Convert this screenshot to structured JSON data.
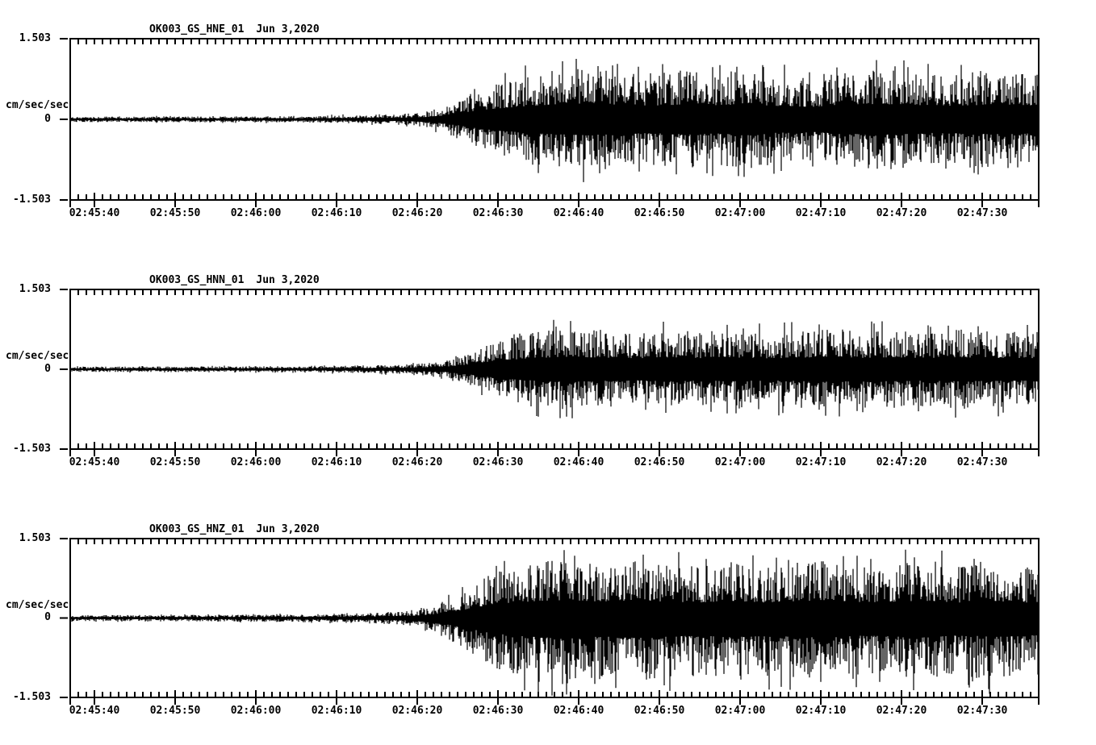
{
  "page": {
    "background_color": "#ffffff",
    "ink_color": "#000000",
    "description": "Three-component strong-motion seismogram record section, station OK003 (GS network), Jun 3, 2020"
  },
  "chart_data": [
    {
      "type": "line",
      "kind": "seismogram-trace",
      "station": "OK003_GS_HNE_01",
      "date": "Jun 3,2020",
      "ylabel": "cm/sec/sec",
      "ylim": [
        -1.503,
        1.503
      ],
      "y_ticks": [
        {
          "value": 1.503,
          "label": "1.503"
        },
        {
          "value": 0,
          "label": "0"
        },
        {
          "value": -1.503,
          "label": "-1.503"
        }
      ],
      "duration_s": 120,
      "x_minor_tick_s": 1,
      "x_major_tick_s": 10,
      "grid": false,
      "legend": false,
      "x_ticks": [
        {
          "t": 3,
          "label": "02:45:40"
        },
        {
          "t": 13,
          "label": "02:45:50"
        },
        {
          "t": 23,
          "label": "02:46:00"
        },
        {
          "t": 33,
          "label": "02:46:10"
        },
        {
          "t": 43,
          "label": "02:46:20"
        },
        {
          "t": 53,
          "label": "02:46:30"
        },
        {
          "t": 63,
          "label": "02:46:40"
        },
        {
          "t": 73,
          "label": "02:46:50"
        },
        {
          "t": 83,
          "label": "02:47:00"
        },
        {
          "t": 93,
          "label": "02:47:10"
        },
        {
          "t": 103,
          "label": "02:47:20"
        },
        {
          "t": 113,
          "label": "02:47:30"
        }
      ],
      "envelope": [
        [
          0,
          0.05
        ],
        [
          15,
          0.055
        ],
        [
          28,
          0.06
        ],
        [
          36,
          0.08
        ],
        [
          41,
          0.1
        ],
        [
          44,
          0.14
        ],
        [
          46,
          0.22
        ],
        [
          48,
          0.36
        ],
        [
          50,
          0.52
        ],
        [
          53,
          0.68
        ],
        [
          56,
          0.8
        ],
        [
          60,
          0.92
        ],
        [
          64,
          0.98
        ],
        [
          68,
          0.9
        ],
        [
          72,
          0.85
        ],
        [
          76,
          0.92
        ],
        [
          80,
          0.88
        ],
        [
          84,
          0.92
        ],
        [
          88,
          0.82
        ],
        [
          92,
          0.78
        ],
        [
          96,
          0.88
        ],
        [
          100,
          0.95
        ],
        [
          104,
          0.9
        ],
        [
          108,
          0.82
        ],
        [
          112,
          0.88
        ],
        [
          116,
          0.92
        ],
        [
          120,
          0.85
        ]
      ],
      "spikes": [
        {
          "t": 82.6,
          "up": 0.98,
          "down": -0.7
        }
      ],
      "asym_up": 1.0,
      "asym_down": 1.0
    },
    {
      "type": "line",
      "kind": "seismogram-trace",
      "station": "OK003_GS_HNN_01",
      "date": "Jun 3,2020",
      "ylabel": "cm/sec/sec",
      "ylim": [
        -1.503,
        1.503
      ],
      "y_ticks": [
        {
          "value": 1.503,
          "label": "1.503"
        },
        {
          "value": 0,
          "label": "0"
        },
        {
          "value": -1.503,
          "label": "-1.503"
        }
      ],
      "duration_s": 120,
      "x_minor_tick_s": 1,
      "x_major_tick_s": 10,
      "grid": false,
      "legend": false,
      "x_ticks": [
        {
          "t": 3,
          "label": "02:45:40"
        },
        {
          "t": 13,
          "label": "02:45:50"
        },
        {
          "t": 23,
          "label": "02:46:00"
        },
        {
          "t": 33,
          "label": "02:46:10"
        },
        {
          "t": 43,
          "label": "02:46:20"
        },
        {
          "t": 53,
          "label": "02:46:30"
        },
        {
          "t": 63,
          "label": "02:46:40"
        },
        {
          "t": 73,
          "label": "02:46:50"
        },
        {
          "t": 83,
          "label": "02:47:00"
        },
        {
          "t": 93,
          "label": "02:47:10"
        },
        {
          "t": 103,
          "label": "02:47:20"
        },
        {
          "t": 113,
          "label": "02:47:30"
        }
      ],
      "envelope": [
        [
          0,
          0.05
        ],
        [
          15,
          0.055
        ],
        [
          28,
          0.06
        ],
        [
          36,
          0.075
        ],
        [
          41,
          0.09
        ],
        [
          44,
          0.12
        ],
        [
          47,
          0.18
        ],
        [
          49,
          0.28
        ],
        [
          51,
          0.42
        ],
        [
          54,
          0.58
        ],
        [
          58,
          0.72
        ],
        [
          62,
          0.78
        ],
        [
          66,
          0.72
        ],
        [
          70,
          0.68
        ],
        [
          74,
          0.75
        ],
        [
          78,
          0.7
        ],
        [
          82,
          0.75
        ],
        [
          86,
          0.68
        ],
        [
          90,
          0.72
        ],
        [
          94,
          0.78
        ],
        [
          98,
          0.72
        ],
        [
          102,
          0.75
        ],
        [
          106,
          0.7
        ],
        [
          110,
          0.75
        ],
        [
          114,
          0.72
        ],
        [
          120,
          0.7
        ]
      ],
      "spikes": [
        {
          "t": 57.8,
          "up": 0.5,
          "down": -0.88
        },
        {
          "t": 88.5,
          "up": 0.88,
          "down": -0.5
        }
      ],
      "asym_up": 1.0,
      "asym_down": 1.0
    },
    {
      "type": "line",
      "kind": "seismogram-trace",
      "station": "OK003_GS_HNZ_01",
      "date": "Jun 3,2020",
      "ylabel": "cm/sec/sec",
      "ylim": [
        -1.503,
        1.503
      ],
      "y_ticks": [
        {
          "value": 1.503,
          "label": "1.503"
        },
        {
          "value": 0,
          "label": "0"
        },
        {
          "value": -1.503,
          "label": "-1.503"
        }
      ],
      "duration_s": 120,
      "x_minor_tick_s": 1,
      "x_major_tick_s": 10,
      "grid": false,
      "legend": false,
      "x_ticks": [
        {
          "t": 3,
          "label": "02:45:40"
        },
        {
          "t": 13,
          "label": "02:45:50"
        },
        {
          "t": 23,
          "label": "02:46:00"
        },
        {
          "t": 33,
          "label": "02:46:10"
        },
        {
          "t": 43,
          "label": "02:46:20"
        },
        {
          "t": 53,
          "label": "02:46:30"
        },
        {
          "t": 63,
          "label": "02:46:40"
        },
        {
          "t": 73,
          "label": "02:46:50"
        },
        {
          "t": 83,
          "label": "02:47:00"
        },
        {
          "t": 93,
          "label": "02:47:10"
        },
        {
          "t": 103,
          "label": "02:47:20"
        },
        {
          "t": 113,
          "label": "02:47:30"
        }
      ],
      "envelope": [
        [
          0,
          0.055
        ],
        [
          15,
          0.06
        ],
        [
          28,
          0.07
        ],
        [
          36,
          0.09
        ],
        [
          40,
          0.11
        ],
        [
          43,
          0.16
        ],
        [
          45,
          0.24
        ],
        [
          47,
          0.38
        ],
        [
          49,
          0.55
        ],
        [
          51,
          0.75
        ],
        [
          54,
          0.95
        ],
        [
          58,
          1.1
        ],
        [
          62,
          1.15
        ],
        [
          66,
          1.05
        ],
        [
          70,
          1.12
        ],
        [
          74,
          1.05
        ],
        [
          78,
          1.0
        ],
        [
          82,
          1.1
        ],
        [
          86,
          1.0
        ],
        [
          90,
          1.08
        ],
        [
          94,
          1.12
        ],
        [
          98,
          1.0
        ],
        [
          102,
          1.05
        ],
        [
          106,
          1.1
        ],
        [
          110,
          1.0
        ],
        [
          114,
          1.05
        ],
        [
          120,
          0.98
        ]
      ],
      "spikes": [
        {
          "t": 58,
          "up": 0.9,
          "down": -1.45
        },
        {
          "t": 62.5,
          "up": 1.18,
          "down": -0.8
        },
        {
          "t": 71,
          "up": 1.2,
          "down": -0.85
        },
        {
          "t": 97,
          "up": 0.8,
          "down": -1.15
        },
        {
          "t": 112,
          "up": 1.12,
          "down": -0.75
        }
      ],
      "asym_up": 0.98,
      "asym_down": 1.1
    }
  ]
}
